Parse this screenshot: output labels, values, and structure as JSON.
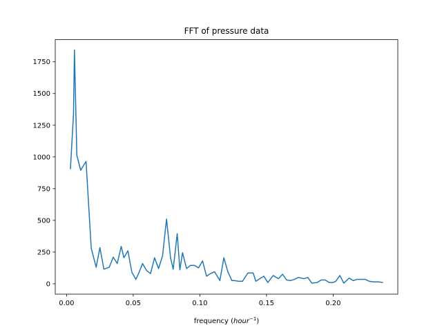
{
  "chart_data": {
    "type": "line",
    "title": "FFT of pressure data",
    "xlabel": "frequency (hour^-1)",
    "xlabel_base": "frequency (",
    "xlabel_var": "hour",
    "xlabel_exp": "−1",
    "xlabel_close": ")",
    "ylabel": "",
    "xlim": [
      -0.0085,
      0.2485
    ],
    "ylim": [
      -82,
      1925
    ],
    "grid": false,
    "legend": "none",
    "xticks": [
      0.0,
      0.05,
      0.1,
      0.15,
      0.2
    ],
    "xtick_labels": [
      "0.00",
      "0.05",
      "0.10",
      "0.15",
      "0.20"
    ],
    "yticks": [
      0,
      250,
      500,
      750,
      1000,
      1250,
      1500,
      1750
    ],
    "ytick_labels": [
      "0",
      "250",
      "500",
      "750",
      "1000",
      "1250",
      "1500",
      "1750"
    ],
    "line_color": "#1f77b4",
    "series": [
      {
        "x": [
          0.0029,
          0.0052,
          0.0059,
          0.0077,
          0.0106,
          0.0146,
          0.0185,
          0.0222,
          0.025,
          0.028,
          0.032,
          0.035,
          0.038,
          0.041,
          0.043,
          0.046,
          0.049,
          0.052,
          0.054,
          0.057,
          0.06,
          0.063,
          0.066,
          0.069,
          0.072,
          0.075,
          0.078,
          0.08,
          0.083,
          0.085,
          0.087,
          0.09,
          0.093,
          0.096,
          0.099,
          0.102,
          0.105,
          0.108,
          0.111,
          0.115,
          0.118,
          0.121,
          0.124,
          0.126,
          0.129,
          0.132,
          0.136,
          0.14,
          0.142,
          0.145,
          0.148,
          0.151,
          0.155,
          0.159,
          0.162,
          0.165,
          0.168,
          0.171,
          0.174,
          0.178,
          0.181,
          0.184,
          0.188,
          0.191,
          0.194,
          0.197,
          0.2,
          0.202,
          0.205,
          0.208,
          0.212,
          0.215,
          0.218,
          0.221,
          0.224,
          0.227,
          0.23,
          0.234,
          0.237
        ],
        "y": [
          908,
          1340,
          1843,
          1012,
          895,
          965,
          280,
          130,
          285,
          115,
          130,
          210,
          160,
          295,
          205,
          260,
          90,
          35,
          80,
          160,
          105,
          80,
          205,
          120,
          220,
          510,
          205,
          115,
          395,
          110,
          245,
          120,
          145,
          145,
          125,
          180,
          60,
          80,
          95,
          25,
          205,
          95,
          25,
          25,
          20,
          20,
          85,
          85,
          20,
          40,
          60,
          10,
          65,
          40,
          75,
          30,
          25,
          35,
          50,
          40,
          50,
          5,
          10,
          30,
          30,
          10,
          10,
          20,
          65,
          5,
          45,
          25,
          35,
          35,
          35,
          20,
          15,
          15,
          10
        ]
      }
    ]
  }
}
